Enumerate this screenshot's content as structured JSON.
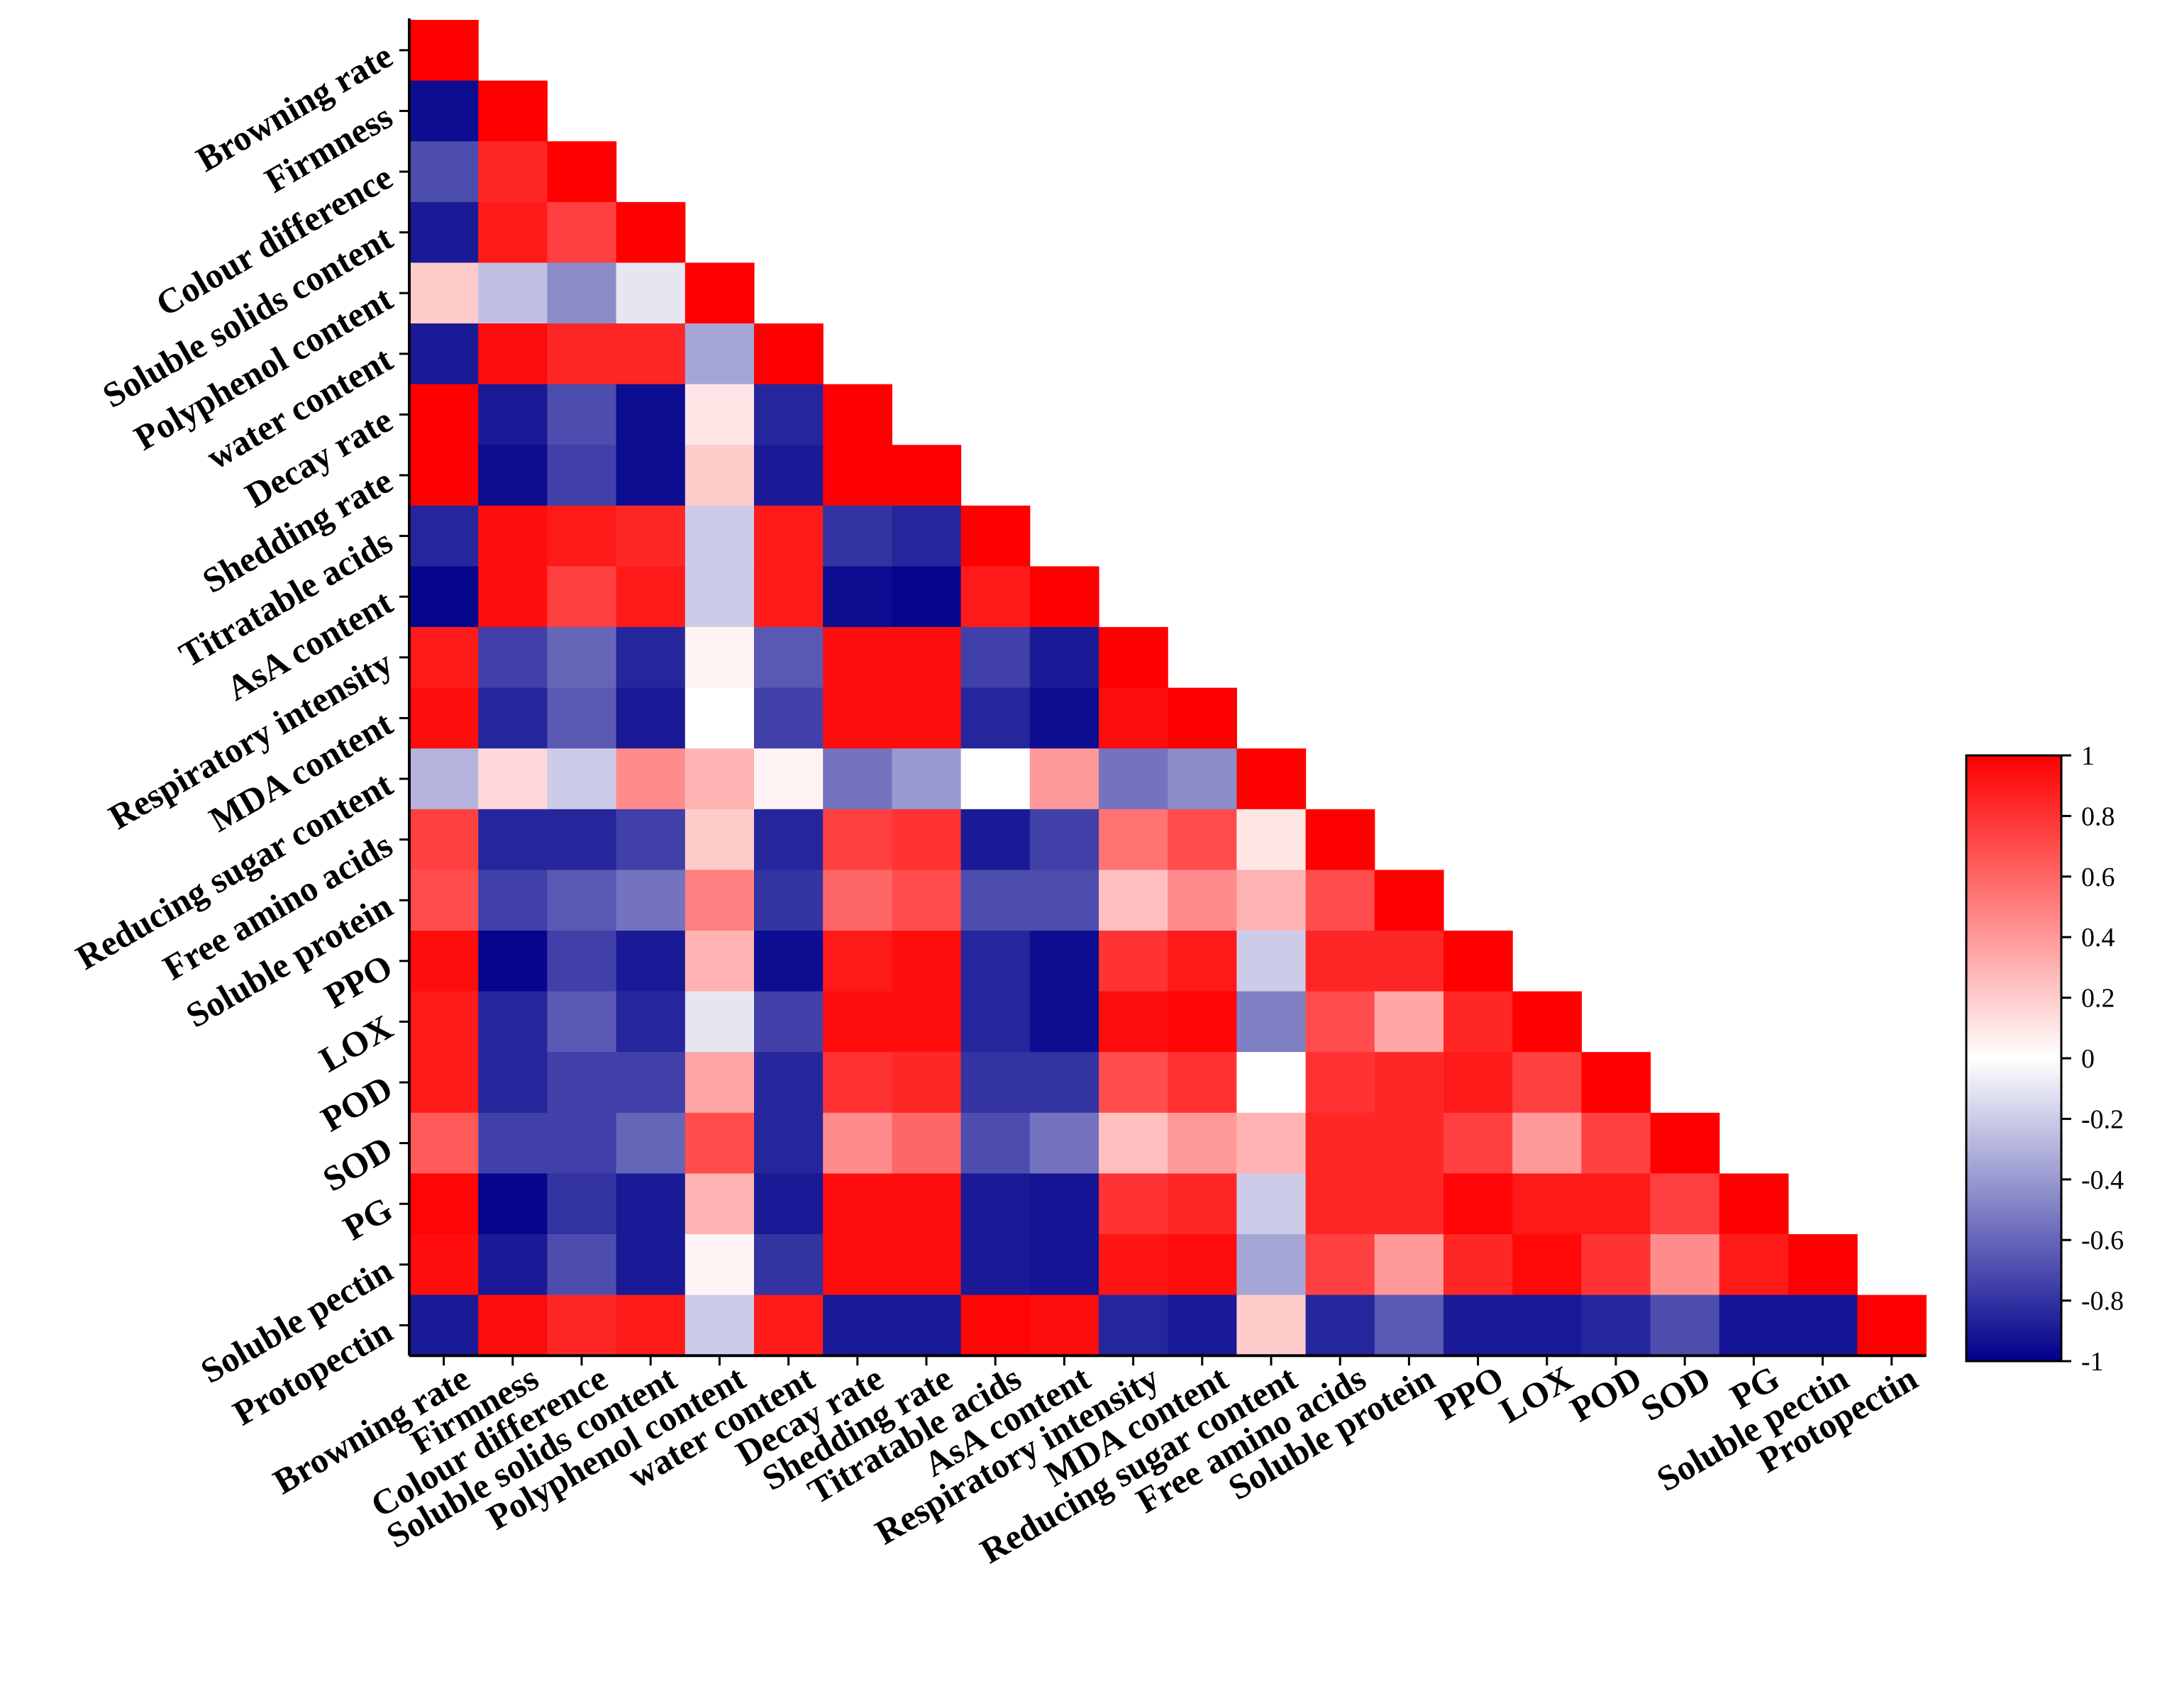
{
  "chart_data": {
    "type": "heatmap",
    "subtype": "lower-triangle correlation matrix",
    "title": "",
    "variables": [
      "Browning rate",
      "Firmness",
      "Colour difference",
      "Soluble solids content",
      "Polyphenol content",
      "water content",
      "Decay rate",
      "Shedding rate",
      "Titratable acids",
      "AsA content",
      "Respiratory intensity",
      "MDA content",
      "Reducing sugar content",
      "Free amino acids",
      "Soluble protein",
      "PPO",
      "LOX",
      "POD",
      "SOD",
      "PG",
      "Soluble pectin",
      "Protopectin"
    ],
    "matrix": [
      [
        1
      ],
      [
        -0.95,
        1
      ],
      [
        -0.7,
        0.85,
        1
      ],
      [
        -0.9,
        0.9,
        0.75,
        1
      ],
      [
        0.2,
        -0.25,
        -0.45,
        -0.1,
        1
      ],
      [
        -0.9,
        0.95,
        0.85,
        0.85,
        -0.35,
        1
      ],
      [
        1,
        -0.9,
        -0.7,
        -0.95,
        0.1,
        -0.85,
        1
      ],
      [
        1,
        -0.95,
        -0.75,
        -0.95,
        0.2,
        -0.9,
        1,
        1
      ],
      [
        -0.85,
        0.95,
        0.9,
        0.85,
        -0.2,
        0.9,
        -0.8,
        -0.85,
        1
      ],
      [
        -0.98,
        0.95,
        0.75,
        0.9,
        -0.2,
        0.9,
        -0.95,
        -0.98,
        0.9,
        1
      ],
      [
        0.9,
        -0.75,
        -0.6,
        -0.85,
        0.05,
        -0.65,
        0.95,
        0.95,
        -0.75,
        -0.9,
        1
      ],
      [
        0.95,
        -0.85,
        -0.65,
        -0.9,
        0,
        -0.75,
        0.95,
        0.95,
        -0.85,
        -0.95,
        0.95,
        1
      ],
      [
        -0.3,
        0.15,
        -0.2,
        0.45,
        0.3,
        0.05,
        -0.55,
        -0.4,
        0,
        0.4,
        -0.55,
        -0.45,
        1
      ],
      [
        0.75,
        -0.85,
        -0.85,
        -0.75,
        0.2,
        -0.85,
        0.75,
        0.8,
        -0.9,
        -0.75,
        0.55,
        0.7,
        0.1,
        1
      ],
      [
        0.7,
        -0.75,
        -0.65,
        -0.55,
        0.5,
        -0.8,
        0.6,
        0.7,
        -0.7,
        -0.7,
        0.25,
        0.45,
        0.3,
        0.7,
        1
      ],
      [
        0.95,
        -0.98,
        -0.75,
        -0.9,
        0.3,
        -0.95,
        0.9,
        0.95,
        -0.85,
        -0.95,
        0.8,
        0.9,
        -0.2,
        0.85,
        0.85,
        1
      ],
      [
        0.9,
        -0.85,
        -0.65,
        -0.85,
        -0.1,
        -0.75,
        0.95,
        0.95,
        -0.85,
        -0.95,
        0.95,
        0.98,
        -0.5,
        0.7,
        0.35,
        0.85,
        1
      ],
      [
        0.9,
        -0.85,
        -0.75,
        -0.75,
        0.35,
        -0.85,
        0.8,
        0.85,
        -0.8,
        -0.8,
        0.7,
        0.8,
        0,
        0.8,
        0.85,
        0.9,
        0.75,
        1
      ],
      [
        0.65,
        -0.75,
        -0.75,
        -0.6,
        0.7,
        -0.85,
        0.45,
        0.6,
        -0.7,
        -0.55,
        0.25,
        0.4,
        0.3,
        0.85,
        0.85,
        0.75,
        0.4,
        0.75,
        1
      ],
      [
        0.98,
        -0.98,
        -0.8,
        -0.9,
        0.3,
        -0.9,
        0.95,
        0.95,
        -0.9,
        -0.92,
        0.8,
        0.85,
        -0.2,
        0.85,
        0.85,
        0.98,
        0.9,
        0.9,
        0.75,
        1
      ],
      [
        0.95,
        -0.9,
        -0.7,
        -0.9,
        0.05,
        -0.8,
        0.95,
        0.95,
        -0.9,
        -0.92,
        0.92,
        0.95,
        -0.35,
        0.75,
        0.4,
        0.85,
        0.97,
        0.8,
        0.45,
        0.9,
        1
      ],
      [
        -0.9,
        0.95,
        0.85,
        0.9,
        -0.2,
        0.9,
        -0.9,
        -0.9,
        0.98,
        0.95,
        -0.85,
        -0.9,
        0.2,
        -0.85,
        -0.65,
        -0.9,
        -0.9,
        -0.85,
        -0.7,
        -0.92,
        -0.92,
        1
      ]
    ],
    "colorbar": {
      "range": [
        -1,
        1
      ],
      "colors": {
        "low": "#00008b",
        "mid": "#ffffff",
        "high": "#ff0000"
      },
      "ticks": [
        "1",
        "0.8",
        "0.6",
        "0.4",
        "0.2",
        "0",
        "-0.2",
        "-0.4",
        "-0.6",
        "-0.8",
        "-1"
      ],
      "placement": "right"
    },
    "xlabel": "",
    "ylabel": ""
  }
}
